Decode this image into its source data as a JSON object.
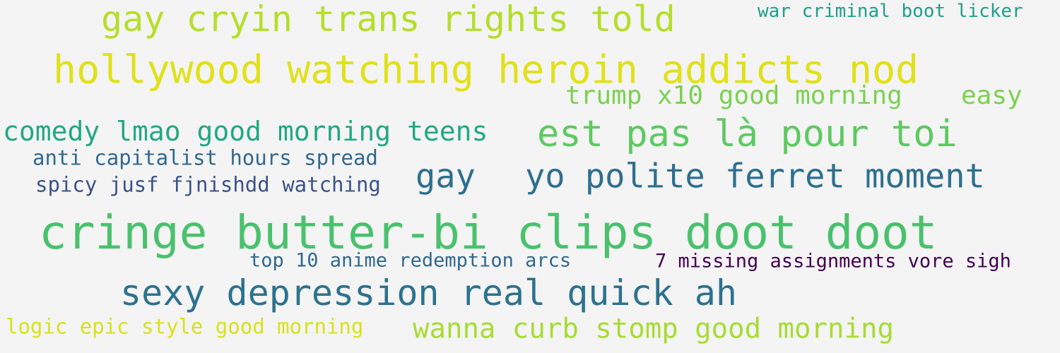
{
  "wordcloud": {
    "background_color": "#f4f4f4",
    "phrases": [
      {
        "text": "gay cryin trans rights told",
        "color": "#b5de2b"
      },
      {
        "text": "war criminal boot licker",
        "color": "#1f9e89"
      },
      {
        "text": "hollywood watching heroin addicts nod",
        "color": "#e0e11a"
      },
      {
        "text": "trump x10 good morning",
        "color": "#7ad151"
      },
      {
        "text": "easy",
        "color": "#7ad151"
      },
      {
        "text": "comedy lmao good morning teens",
        "color": "#22a884"
      },
      {
        "text": "est pas là pour toi",
        "color": "#5ec962"
      },
      {
        "text": "anti capitalist hours spread",
        "color": "#31688e"
      },
      {
        "text": "gay",
        "color": "#2e6f8e"
      },
      {
        "text": "yo polite ferret moment",
        "color": "#2e6f8e"
      },
      {
        "text": "spicy jusf fjnishdd watching",
        "color": "#3b528b"
      },
      {
        "text": "cringe butter-bi clips doot doot",
        "color": "#4ac16d"
      },
      {
        "text": "top 10 anime redemption arcs",
        "color": "#31688e"
      },
      {
        "text": "7 missing assignments vore sigh",
        "color": "#440154"
      },
      {
        "text": "sexy depression real quick ah",
        "color": "#2c728e"
      },
      {
        "text": "logic epic style good morning",
        "color": "#d8e219"
      },
      {
        "text": "wanna curb stomp good morning",
        "color": "#a8db34"
      }
    ]
  }
}
